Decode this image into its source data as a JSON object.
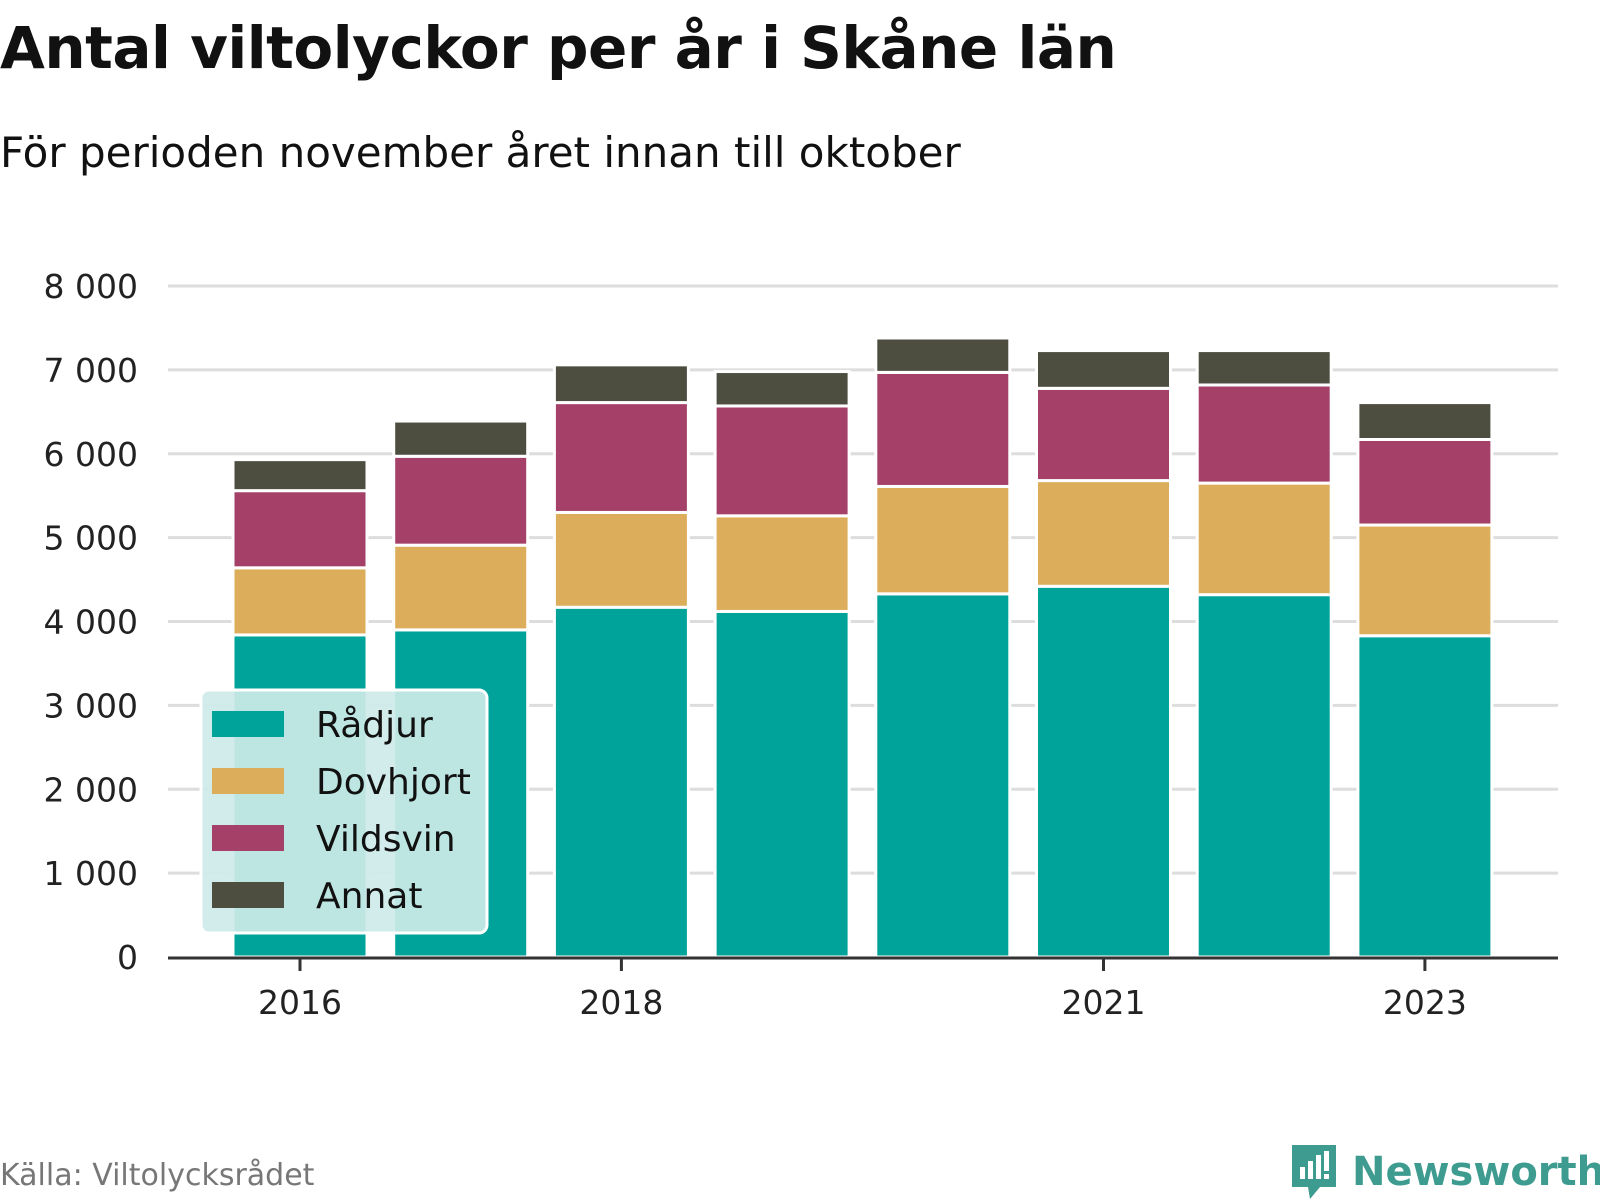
{
  "title": "Antal viltolyckor per år i Skåne län",
  "subtitle": "För perioden november året innan till oktober",
  "source": "Källa: Viltolycksrådet",
  "brand": "Newsworthy",
  "colors": {
    "radjur": "#00a39a",
    "dovhjort": "#dcad5a",
    "vildsvin": "#a54168",
    "annat": "#4d4e40",
    "grid": "#dddddd",
    "axis": "#333333",
    "legend_bg": "#cdeae8",
    "brand": "#3d9b8f"
  },
  "chart_data": {
    "type": "bar",
    "stacked": true,
    "title": "Antal viltolyckor per år i Skåne län",
    "subtitle": "För perioden november året innan till oktober",
    "x": [
      2016,
      2017,
      2018,
      2019,
      2020,
      2021,
      2022,
      2023
    ],
    "x_tick_labels": [
      "2016",
      "2018",
      "2021",
      "2023"
    ],
    "ylim": [
      0,
      8000
    ],
    "y_tick_labels": [
      "0",
      "1 000",
      "2 000",
      "3 000",
      "4 000",
      "5 000",
      "6 000",
      "7 000",
      "8 000"
    ],
    "grid": true,
    "legend_position": "bottom-left",
    "series": [
      {
        "name": "Rådjur",
        "color_key": "radjur",
        "values": [
          3840,
          3900,
          4170,
          4120,
          4330,
          4420,
          4320,
          3830
        ]
      },
      {
        "name": "Dovhjort",
        "color_key": "dovhjort",
        "values": [
          800,
          1010,
          1130,
          1140,
          1280,
          1260,
          1330,
          1320
        ]
      },
      {
        "name": "Vildsvin",
        "color_key": "vildsvin",
        "values": [
          920,
          1060,
          1310,
          1310,
          1360,
          1100,
          1170,
          1020
        ]
      },
      {
        "name": "Annat",
        "color_key": "annat",
        "values": [
          370,
          420,
          450,
          410,
          410,
          450,
          410,
          440
        ]
      }
    ]
  }
}
